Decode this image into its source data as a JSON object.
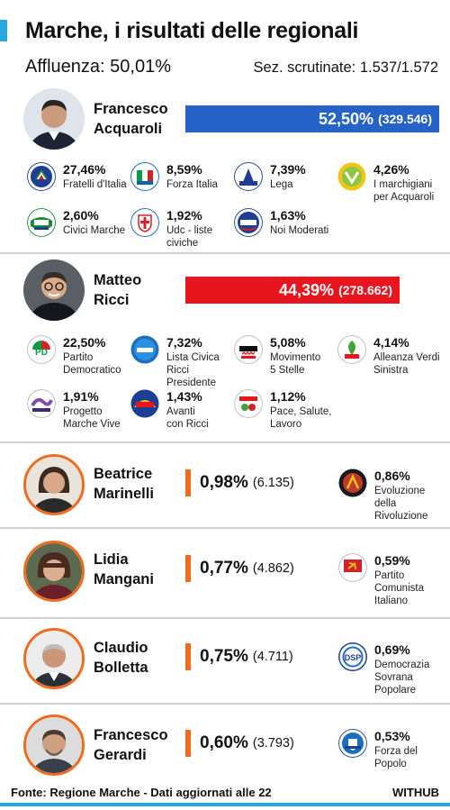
{
  "header": {
    "title": "Marche, i risultati delle regionali",
    "turnout": "Affluenza: 50,01%",
    "sections": "Sez. scrutinate: 1.537/1.572"
  },
  "colors": {
    "accent": "#29a8e0",
    "acquaroli_bar": "#2563c8",
    "ricci_bar": "#e8141e",
    "minor_mark": "#ef6b1f",
    "avatar_ring": "#ef6b1f"
  },
  "chart_data": {
    "type": "bar",
    "title": "Marche, i risultati delle regionali",
    "candidates": [
      {
        "name": "Francesco Acquaroli",
        "name_line1": "Francesco",
        "name_line2": "Acquaroli",
        "pct_label": "52,50%",
        "votes_label": "(329.546)",
        "value": 52.5,
        "votes": 329546,
        "parties": [
          {
            "pct": "27,46%",
            "name": "Fratelli d'Italia",
            "logo": "fdi-logo"
          },
          {
            "pct": "8,59%",
            "name": "Forza Italia",
            "logo": "forza-italia-logo"
          },
          {
            "pct": "7,39%",
            "name": "Lega",
            "logo": "lega-logo"
          },
          {
            "pct": "4,26%",
            "name": "I marchigiani\nper Acquaroli",
            "logo": "marchigiani-logo"
          },
          {
            "pct": "2,60%",
            "name": "Civici Marche",
            "logo": "civici-marche-logo"
          },
          {
            "pct": "1,92%",
            "name": "Udc - liste civiche",
            "logo": "udc-logo"
          },
          {
            "pct": "1,63%",
            "name": "Noi Moderati",
            "logo": "noi-moderati-logo"
          }
        ]
      },
      {
        "name": "Matteo Ricci",
        "name_line1": "Matteo",
        "name_line2": "Ricci",
        "pct_label": "44,39%",
        "votes_label": "(278.662)",
        "value": 44.39,
        "votes": 278662,
        "parties": [
          {
            "pct": "22,50%",
            "name": "Partito\nDemocratico",
            "logo": "pd-logo"
          },
          {
            "pct": "7,32%",
            "name": "Lista Civica Ricci\nPresidente",
            "logo": "lista-ricci-logo"
          },
          {
            "pct": "5,08%",
            "name": "Movimento\n5 Stelle",
            "logo": "m5s-logo"
          },
          {
            "pct": "4,14%",
            "name": "Alleanza Verdi\nSinistra",
            "logo": "avs-logo"
          },
          {
            "pct": "1,91%",
            "name": "Progetto\nMarche Vive",
            "logo": "marche-vive-logo"
          },
          {
            "pct": "1,43%",
            "name": "Avanti\ncon Ricci",
            "logo": "avanti-logo"
          },
          {
            "pct": "1,12%",
            "name": "Pace, Salute, Lavoro",
            "logo": "pace-salute-logo"
          }
        ]
      },
      {
        "name": "Beatrice Marinelli",
        "name_line1": "Beatrice",
        "name_line2": "Marinelli",
        "pct_label": "0,98%",
        "votes_label": "(6.135)",
        "value": 0.98,
        "votes": 6135,
        "parties": [
          {
            "pct": "0,86%",
            "name": "Evoluzione\ndella Rivoluzione",
            "logo": "evoluzione-logo"
          }
        ]
      },
      {
        "name": "Lidia Mangani",
        "name_line1": "Lidia",
        "name_line2": "Mangani",
        "pct_label": "0,77%",
        "votes_label": "(4.862)",
        "value": 0.77,
        "votes": 4862,
        "parties": [
          {
            "pct": "0,59%",
            "name": "Partito Comunista\nItaliano",
            "logo": "pci-logo"
          }
        ]
      },
      {
        "name": "Claudio Bolletta",
        "name_line1": "Claudio",
        "name_line2": "Bolletta",
        "pct_label": "0,75%",
        "votes_label": "(4.711)",
        "value": 0.75,
        "votes": 4711,
        "parties": [
          {
            "pct": "0,69%",
            "name": "Democrazia\nSovrana Popolare",
            "logo": "dsp-logo"
          }
        ]
      },
      {
        "name": "Francesco Gerardi",
        "name_line1": "Francesco",
        "name_line2": "Gerardi",
        "pct_label": "0,60%",
        "votes_label": "(3.793)",
        "value": 0.6,
        "votes": 3793,
        "parties": [
          {
            "pct": "0,53%",
            "name": "Forza del Popolo",
            "logo": "forza-popolo-logo"
          }
        ]
      }
    ]
  },
  "footer": {
    "source": "Fonte: Regione Marche - Dati aggiornati alle 22",
    "brand": "WITHUB"
  }
}
